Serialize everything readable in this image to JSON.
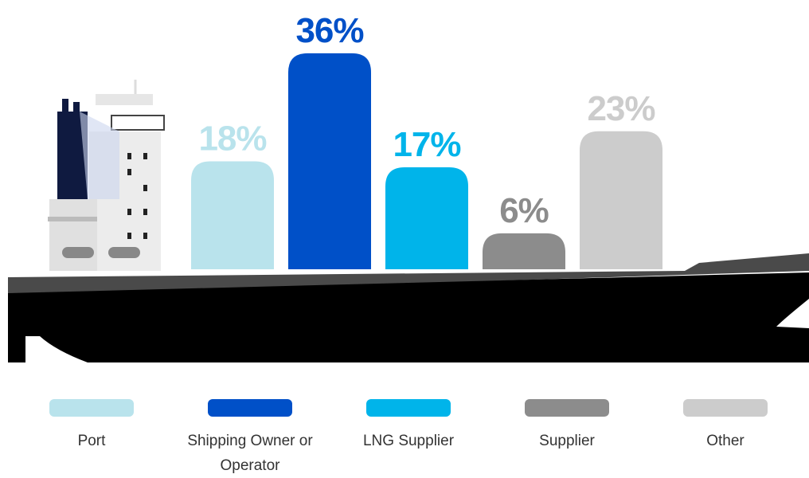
{
  "chart_data": {
    "type": "bar",
    "categories": [
      "Port",
      "Shipping Owner or Operator",
      "LNG Supplier",
      "Supplier",
      "Other"
    ],
    "values": [
      18,
      36,
      17,
      6,
      23
    ],
    "value_labels": [
      "18%",
      "36%",
      "17%",
      "6%",
      "23%"
    ],
    "colors": [
      "#b9e3ec",
      "#0050c8",
      "#00b4ea",
      "#8c8c8c",
      "#cccccc"
    ]
  }
}
